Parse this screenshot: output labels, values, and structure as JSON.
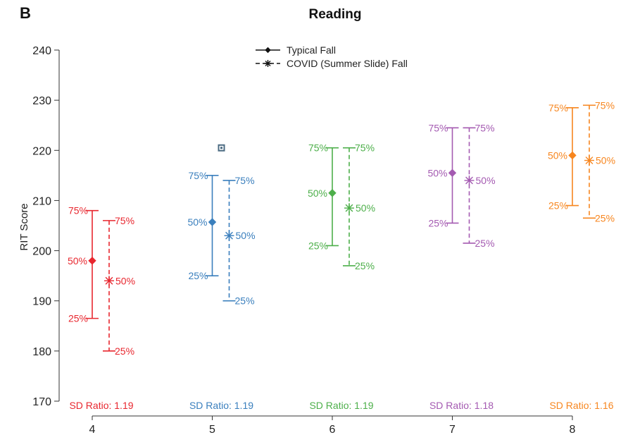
{
  "panel_letter": "B",
  "chart_data": {
    "type": "scatter",
    "title": "Reading",
    "xlabel": "",
    "ylabel": "RIT Score",
    "ylim": [
      170,
      240
    ],
    "yticks": [
      170,
      180,
      190,
      200,
      210,
      220,
      230,
      240
    ],
    "categories": [
      "4",
      "5",
      "6",
      "7",
      "8"
    ],
    "legend": {
      "placement": "top-center",
      "entries": [
        {
          "label": "Typical Fall",
          "marker": "diamond",
          "line": "solid"
        },
        {
          "label": "COVID (Summer Slide) Fall",
          "marker": "asterisk",
          "line": "dashed"
        }
      ]
    },
    "percentile_labels": {
      "p75": "75%",
      "p50": "50%",
      "p25": "25%"
    },
    "series": [
      {
        "name": "Typical Fall",
        "p25": [
          186.5,
          195,
          201,
          205.5,
          209
        ],
        "p50": [
          198,
          205.7,
          211.5,
          215.5,
          219
        ],
        "p75": [
          208,
          215,
          220.5,
          224.5,
          228.5
        ]
      },
      {
        "name": "COVID (Summer Slide) Fall",
        "p25": [
          180,
          190,
          197,
          201.5,
          206.5
        ],
        "p50": [
          194,
          203,
          208.5,
          214,
          218
        ],
        "p75": [
          206,
          214,
          220.5,
          224.5,
          229
        ]
      }
    ],
    "colors": [
      "#e8272f",
      "#3a7fbd",
      "#4daf4a",
      "#a45ab1",
      "#f7861f"
    ],
    "sd_ratio_labels": [
      "SD Ratio: 1.19",
      "SD Ratio: 1.19",
      "SD Ratio: 1.19",
      "SD Ratio: 1.18",
      "SD Ratio: 1.16"
    ],
    "extra_markers": [
      {
        "category": "5",
        "y": 220.5,
        "shape": "square",
        "color": "#4b6b82"
      }
    ]
  }
}
